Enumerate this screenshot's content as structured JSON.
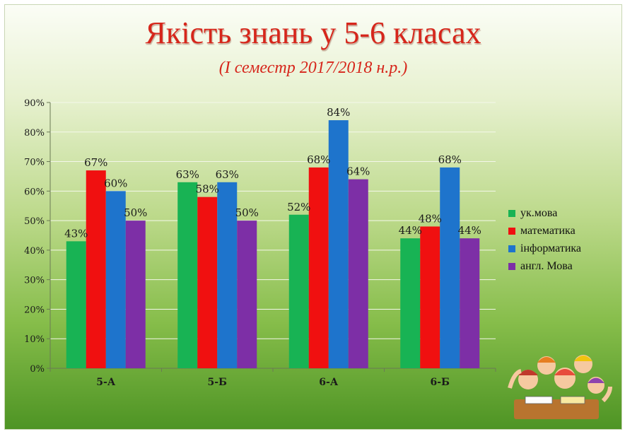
{
  "title": "Якість знань у 5-6 класах",
  "subtitle": "(І семестр 2017/2018 н.р.)",
  "illustration": "kids-at-desk",
  "colors": {
    "uk_mova": "#18b354",
    "matematyka": "#f01010",
    "informatyka": "#1e74cc",
    "angl_mova": "#7d2fa6"
  },
  "chart_data": {
    "type": "bar",
    "categories": [
      "5-А",
      "5-Б",
      "6-А",
      "6-Б"
    ],
    "series": [
      {
        "name": "ук.мова",
        "color": "#18b354",
        "values": [
          43,
          63,
          52,
          44
        ]
      },
      {
        "name": "математика",
        "color": "#f01010",
        "values": [
          67,
          58,
          68,
          48
        ]
      },
      {
        "name": "інформатика",
        "color": "#1e74cc",
        "values": [
          60,
          63,
          84,
          68
        ]
      },
      {
        "name": "англ. Мова",
        "color": "#7d2fa6",
        "values": [
          50,
          50,
          64,
          44
        ]
      }
    ],
    "data_labels": [
      [
        "43%",
        "63%",
        "52%",
        "44%"
      ],
      [
        "67%",
        "58%",
        "68%",
        "48%"
      ],
      [
        "60%",
        "63%",
        "84%",
        "68%"
      ],
      [
        "50%",
        "50%",
        "64%",
        "44%"
      ]
    ],
    "yticks": [
      "0%",
      "10%",
      "20%",
      "30%",
      "40%",
      "50%",
      "60%",
      "70%",
      "80%",
      "90%"
    ],
    "ylim": [
      0,
      90
    ],
    "grid": true,
    "legend": "right"
  }
}
